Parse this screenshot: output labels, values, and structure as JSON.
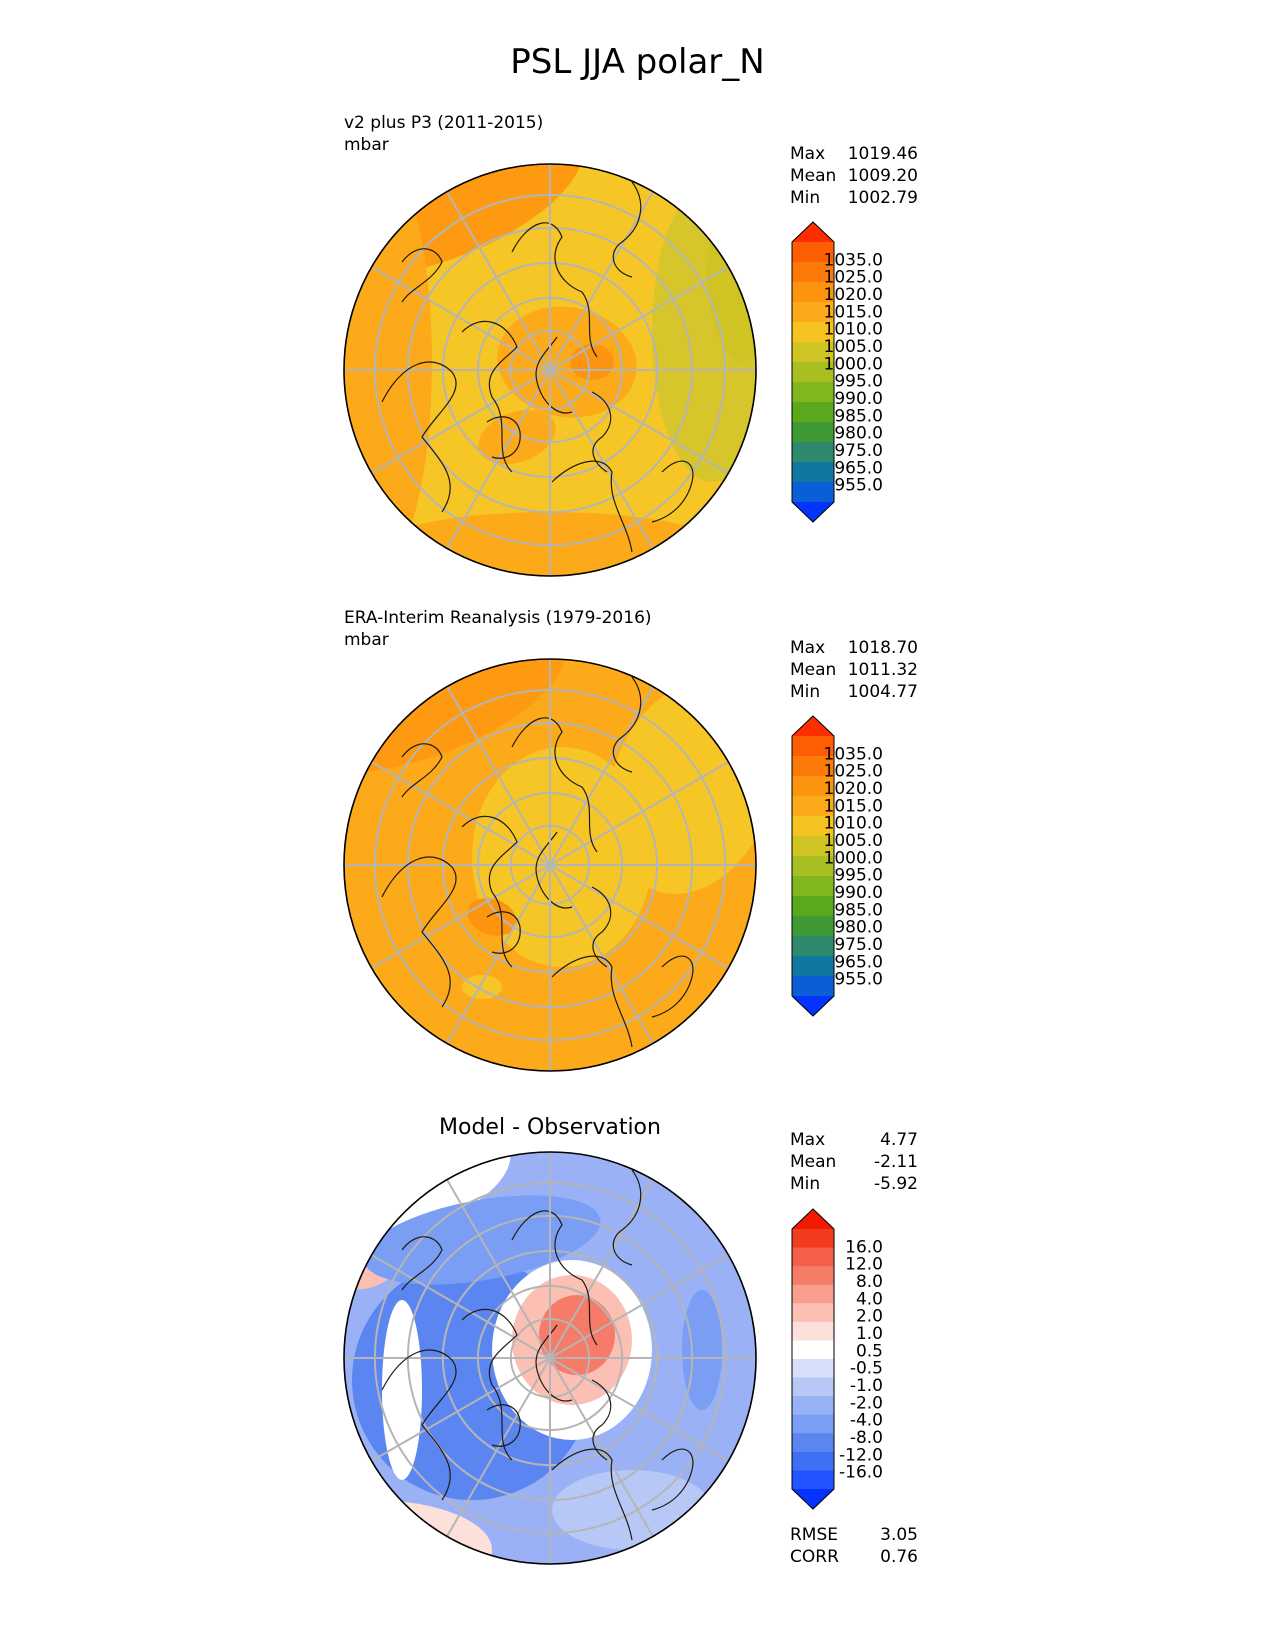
{
  "title": "PSL JJA polar_N",
  "colors": {
    "abs_scale": [
      "#0433ff",
      "#0a5fd6",
      "#0f78a0",
      "#2f8a6d",
      "#3f9a35",
      "#5aa81b",
      "#82b61f",
      "#a8bf22",
      "#cfc424",
      "#f5c423",
      "#fdaa1a",
      "#fd9410",
      "#fd7a08",
      "#fd5e04",
      "#ff2e00"
    ],
    "diff_scale": [
      "#0433ff",
      "#2255ff",
      "#3f6ff5",
      "#5b86f2",
      "#7a9ef3",
      "#98b3f5",
      "#b7c8f7",
      "#d6def9",
      "#ffffff",
      "#fde0da",
      "#fbbfb4",
      "#f99e8e",
      "#f67c69",
      "#f45f4a",
      "#f23c20",
      "#f21a00"
    ]
  },
  "panels": [
    {
      "id": "model",
      "label_line1": "v2 plus P3 (2011-2015)",
      "label_line2": "mbar",
      "center_title": "",
      "stats": [
        {
          "k": "Max",
          "v": "1019.46"
        },
        {
          "k": "Mean",
          "v": "1009.20"
        },
        {
          "k": "Min",
          "v": "1002.79"
        }
      ],
      "colorbar": [
        "1035.0",
        "1025.0",
        "1020.0",
        "1015.0",
        "1010.0",
        "1005.0",
        "1000.0",
        "995.0",
        "990.0",
        "985.0",
        "980.0",
        "975.0",
        "965.0",
        "955.0"
      ],
      "extra_stats": []
    },
    {
      "id": "obs",
      "label_line1": "ERA-Interim Reanalysis (1979-2016)",
      "label_line2": "mbar",
      "center_title": "",
      "stats": [
        {
          "k": "Max",
          "v": "1018.70"
        },
        {
          "k": "Mean",
          "v": "1011.32"
        },
        {
          "k": "Min",
          "v": "1004.77"
        }
      ],
      "colorbar": [
        "1035.0",
        "1025.0",
        "1020.0",
        "1015.0",
        "1010.0",
        "1005.0",
        "1000.0",
        "995.0",
        "990.0",
        "985.0",
        "980.0",
        "975.0",
        "965.0",
        "955.0"
      ],
      "extra_stats": []
    },
    {
      "id": "diff",
      "label_line1": "",
      "label_line2": "",
      "center_title": "Model - Observation",
      "stats": [
        {
          "k": "Max",
          "v": "4.77"
        },
        {
          "k": "Mean",
          "v": "-2.11"
        },
        {
          "k": "Min",
          "v": "-5.92"
        }
      ],
      "colorbar": [
        "16.0",
        "12.0",
        "8.0",
        "4.0",
        "2.0",
        "1.0",
        "0.5",
        "-0.5",
        "-1.0",
        "-2.0",
        "-4.0",
        "-8.0",
        "-12.0",
        "-16.0"
      ],
      "extra_stats": [
        {
          "k": "RMSE",
          "v": "3.05"
        },
        {
          "k": "CORR",
          "v": "0.76"
        }
      ]
    }
  ]
}
